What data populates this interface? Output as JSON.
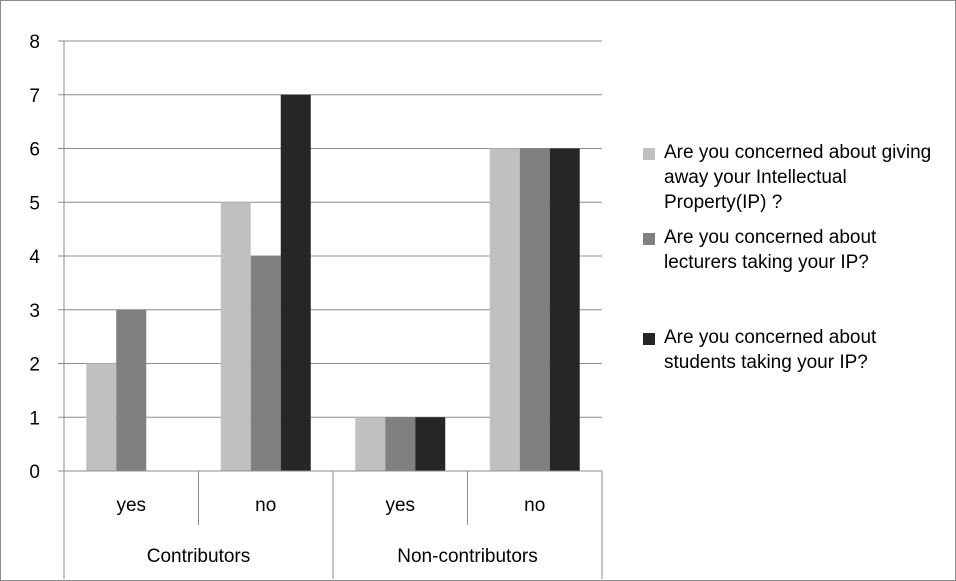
{
  "chart_data": {
    "type": "bar",
    "categories": [
      "yes",
      "no",
      "yes",
      "no"
    ],
    "groups": [
      {
        "label": "Contributors",
        "categories": [
          "yes",
          "no"
        ]
      },
      {
        "label": "Non-contributors",
        "categories": [
          "yes",
          "no"
        ]
      }
    ],
    "series": [
      {
        "name": "Are you concerned about giving away your Intellectual Property(IP) ?",
        "values": [
          2,
          5,
          1,
          6
        ],
        "color": "#c0c0c0"
      },
      {
        "name": "Are you concerned about lecturers taking your IP?",
        "values": [
          3,
          4,
          1,
          6
        ],
        "color": "#808080"
      },
      {
        "name": "Are you concerned about students taking your IP?",
        "values": [
          0,
          7,
          1,
          6
        ],
        "color": "#262626"
      }
    ],
    "ylim": [
      0,
      8
    ],
    "yticks": [
      "0",
      "1",
      "2",
      "3",
      "4",
      "5",
      "6",
      "7",
      "8"
    ],
    "grid": true,
    "legend_position": "right"
  }
}
